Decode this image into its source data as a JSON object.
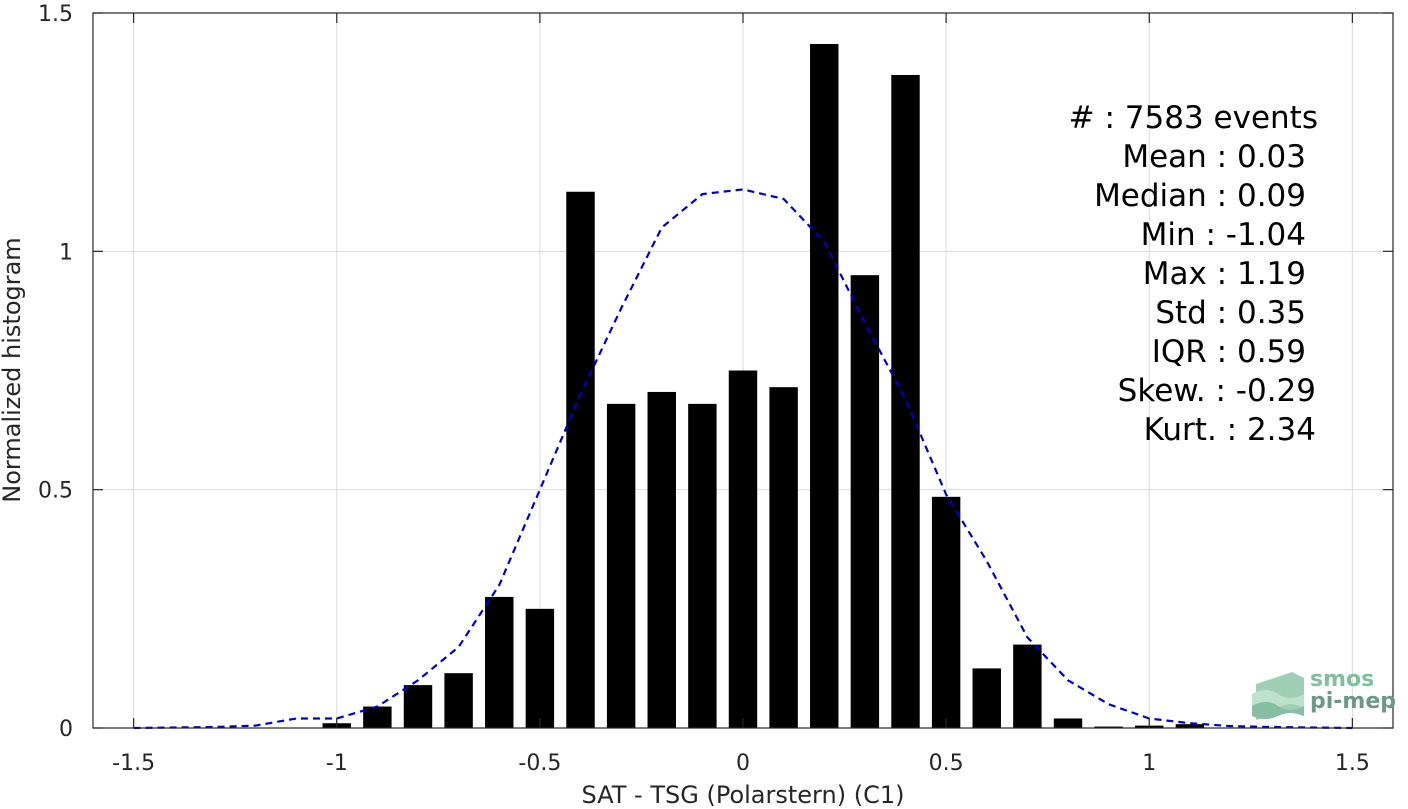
{
  "chart_data": {
    "type": "bar",
    "xlabel": "SAT - TSG (Polarstern) (C1)",
    "ylabel": "Normalized histogram",
    "xlim": [
      -1.6,
      1.6
    ],
    "ylim": [
      0,
      1.5
    ],
    "xticks": [
      -1.5,
      -1,
      -0.5,
      0,
      0.5,
      1,
      1.5
    ],
    "xtick_labels": [
      "-1.5",
      "-1",
      "-0.5",
      "0",
      "0.5",
      "1",
      "1.5"
    ],
    "yticks": [
      0,
      0.5,
      1,
      1.5
    ],
    "ytick_labels": [
      "0",
      "0.5",
      "1",
      "1.5"
    ],
    "grid": true,
    "bar_color": "#000000",
    "fit_color": "#0000cc",
    "series": [
      {
        "type": "bar",
        "x": [
          -1.0,
          -0.9,
          -0.8,
          -0.7,
          -0.6,
          -0.5,
          -0.4,
          -0.3,
          -0.2,
          -0.1,
          0.0,
          0.1,
          0.2,
          0.3,
          0.4,
          0.5,
          0.6,
          0.7,
          0.8,
          0.9,
          1.0,
          1.1
        ],
        "values": [
          0.01,
          0.045,
          0.09,
          0.115,
          0.275,
          0.25,
          1.125,
          0.68,
          0.705,
          0.68,
          0.75,
          0.715,
          1.435,
          0.95,
          1.37,
          0.485,
          0.125,
          0.175,
          0.02,
          0.003,
          0.005,
          0.008
        ]
      },
      {
        "type": "line",
        "style": "dashed",
        "x": [
          -1.5,
          -1.4,
          -1.3,
          -1.2,
          -1.1,
          -1.0,
          -0.9,
          -0.8,
          -0.7,
          -0.6,
          -0.5,
          -0.4,
          -0.3,
          -0.2,
          -0.1,
          0.0,
          0.1,
          0.2,
          0.3,
          0.4,
          0.5,
          0.6,
          0.7,
          0.8,
          0.9,
          1.0,
          1.1,
          1.2,
          1.3,
          1.4,
          1.5
        ],
        "values": [
          0.0,
          0.001,
          0.002,
          0.005,
          0.02,
          0.02,
          0.045,
          0.1,
          0.17,
          0.3,
          0.5,
          0.7,
          0.88,
          1.05,
          1.12,
          1.13,
          1.11,
          1.02,
          0.85,
          0.69,
          0.49,
          0.35,
          0.19,
          0.1,
          0.05,
          0.02,
          0.01,
          0.004,
          0.002,
          0.001,
          0.0
        ]
      }
    ],
    "stats_lines": [
      "#  : 7583 events",
      "Mean : 0.03",
      "Median : 0.09",
      "Min : -1.04",
      "Max : 1.19",
      "Std : 0.35",
      "IQR : 0.59",
      "Skew. : -0.29",
      "Kurt. : 2.34"
    ]
  },
  "logo": {
    "line1": "smos",
    "line2": "pi-mep"
  }
}
